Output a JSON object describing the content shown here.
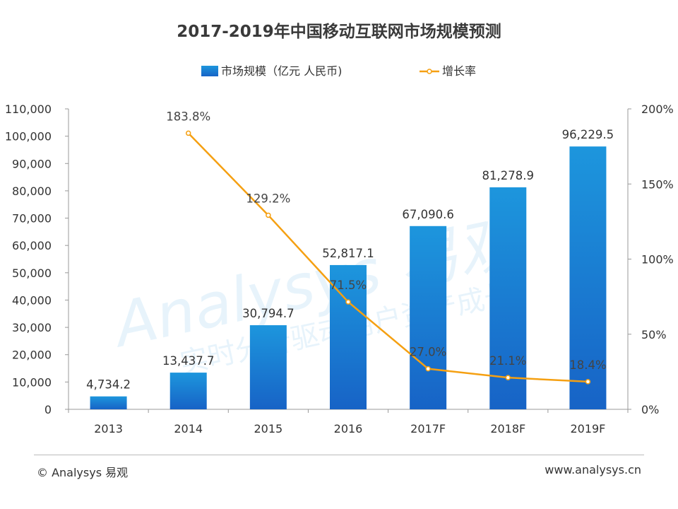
{
  "chart_data": {
    "type": "bar",
    "title": "2017-2019年中国移动互联网市场规模预测",
    "categories": [
      "2013",
      "2014",
      "2015",
      "2016",
      "2017F",
      "2018F",
      "2019F"
    ],
    "series": [
      {
        "name": "市场规模（亿元 人民币)",
        "type": "bar",
        "axis": "left",
        "values": [
          4734.2,
          13437.7,
          30794.7,
          52817.1,
          67090.6,
          81278.9,
          96229.5
        ],
        "labels": [
          "4,734.2",
          "13,437.7",
          "30,794.7",
          "52,817.1",
          "67,090.6",
          "81,278.9",
          "96,229.5"
        ]
      },
      {
        "name": "增长率",
        "type": "line",
        "axis": "right",
        "values": [
          null,
          183.8,
          129.2,
          71.5,
          27.0,
          21.1,
          18.4
        ],
        "labels": [
          null,
          "183.8%",
          "129.2%",
          "71.5%",
          "27.0%",
          "21.1%",
          "18.4%"
        ]
      }
    ],
    "ylim_left": [
      0,
      110000
    ],
    "yticks_left": [
      "0",
      "10,000",
      "20,000",
      "30,000",
      "40,000",
      "50,000",
      "60,000",
      "70,000",
      "80,000",
      "90,000",
      "100,000",
      "110,000"
    ],
    "ylim_right": [
      0,
      200
    ],
    "yticks_right": [
      "0%",
      "50%",
      "100%",
      "150%",
      "200%"
    ],
    "legend_position": "top-center",
    "colors": {
      "bar_top": "#1d96dd",
      "bar_bottom": "#1763c6",
      "line": "#f5a012",
      "marker_fill": "#ffffff",
      "axis": "#999999"
    }
  },
  "footer": {
    "copyright": "© Analysys 易观",
    "website": "www.analysys.cn"
  },
  "watermark": {
    "text": "Analysys 易观",
    "slogan": "实时分析驱动用户资产成长"
  }
}
